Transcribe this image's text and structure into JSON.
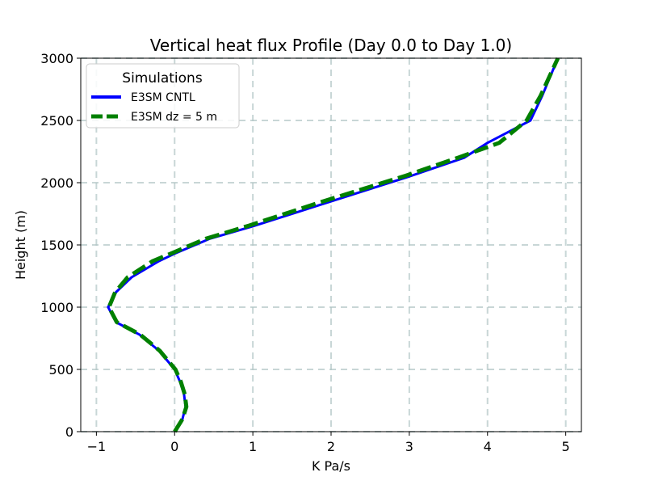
{
  "chart_data": {
    "type": "line",
    "title": "Vertical heat flux Profile (Day 0.0 to Day 1.0)",
    "xlabel": "K Pa/s",
    "ylabel": "Height (m)",
    "xlim": [
      -1.2,
      5.2
    ],
    "ylim": [
      0,
      3000
    ],
    "xticks": [
      -1,
      0,
      1,
      2,
      3,
      4,
      5
    ],
    "xtick_labels": [
      "−1",
      "0",
      "1",
      "2",
      "3",
      "4",
      "5"
    ],
    "yticks": [
      0,
      500,
      1000,
      1500,
      2000,
      2500,
      3000
    ],
    "ytick_labels": [
      "0",
      "500",
      "1000",
      "1500",
      "2000",
      "2500",
      "3000"
    ],
    "grid": true,
    "grid_style": "dashed",
    "legend": {
      "title": "Simulations",
      "placement": "upper-left"
    },
    "series": [
      {
        "name": "E3SM CNTL",
        "color": "#0000ff",
        "linestyle": "solid",
        "points": [
          [
            0.0,
            0
          ],
          [
            0.1,
            100
          ],
          [
            0.14,
            200
          ],
          [
            0.12,
            300
          ],
          [
            0.07,
            400
          ],
          [
            0.0,
            500
          ],
          [
            -0.2,
            650
          ],
          [
            -0.45,
            780
          ],
          [
            -0.75,
            880
          ],
          [
            -0.85,
            1000
          ],
          [
            -0.75,
            1120
          ],
          [
            -0.55,
            1240
          ],
          [
            -0.2,
            1370
          ],
          [
            0.0,
            1430
          ],
          [
            0.45,
            1550
          ],
          [
            1.0,
            1650
          ],
          [
            1.9,
            1830
          ],
          [
            3.0,
            2050
          ],
          [
            3.7,
            2200
          ],
          [
            4.0,
            2320
          ],
          [
            4.55,
            2500
          ],
          [
            4.7,
            2700
          ],
          [
            4.9,
            3000
          ]
        ]
      },
      {
        "name": "E3SM dz = 5 m",
        "color": "#008000",
        "linestyle": "dashed",
        "points": [
          [
            0.0,
            0
          ],
          [
            0.1,
            100
          ],
          [
            0.15,
            200
          ],
          [
            0.13,
            300
          ],
          [
            0.08,
            400
          ],
          [
            0.01,
            500
          ],
          [
            -0.19,
            650
          ],
          [
            -0.44,
            780
          ],
          [
            -0.74,
            880
          ],
          [
            -0.84,
            1000
          ],
          [
            -0.76,
            1120
          ],
          [
            -0.6,
            1240
          ],
          [
            -0.28,
            1370
          ],
          [
            -0.05,
            1430
          ],
          [
            0.4,
            1550
          ],
          [
            0.95,
            1655
          ],
          [
            1.85,
            1840
          ],
          [
            2.95,
            2055
          ],
          [
            3.62,
            2200
          ],
          [
            4.15,
            2320
          ],
          [
            4.5,
            2500
          ],
          [
            4.68,
            2700
          ],
          [
            4.9,
            3000
          ]
        ]
      }
    ]
  }
}
